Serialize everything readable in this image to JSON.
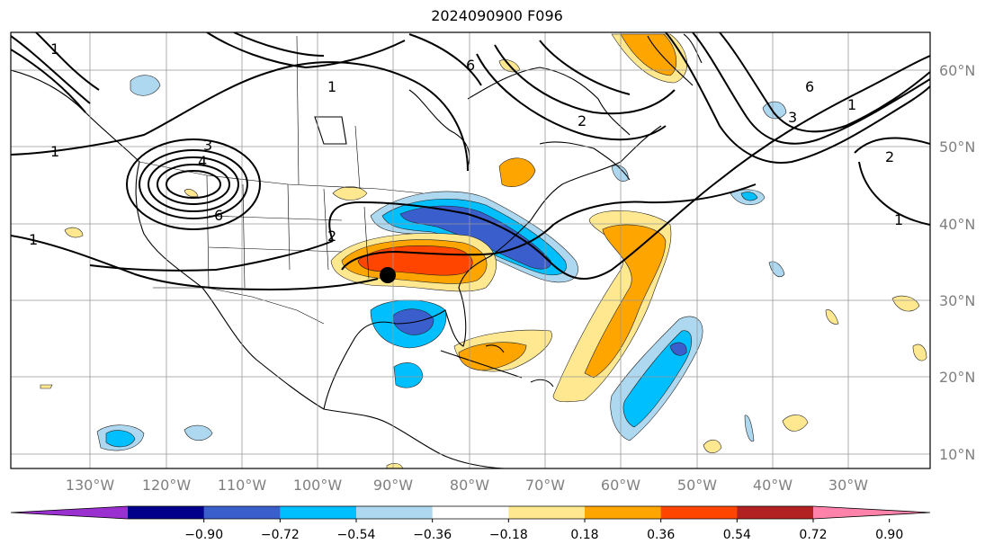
{
  "title": "2024090900 F096",
  "lon_ticks": [
    "130°W",
    "120°W",
    "110°W",
    "100°W",
    "90°W",
    "80°W",
    "70°W",
    "60°W",
    "50°W",
    "40°W",
    "30°W"
  ],
  "lat_ticks": [
    "60°N",
    "50°N",
    "40°N",
    "30°N",
    "20°N",
    "10°N"
  ],
  "colorbar": {
    "levels": [
      "−0.90",
      "−0.72",
      "−0.54",
      "−0.36",
      "−0.18",
      "0.18",
      "0.36",
      "0.54",
      "0.72",
      "0.90"
    ],
    "colors": [
      "#9b30d0",
      "#00008b",
      "#3a5fcd",
      "#00bfff",
      "#add8f0",
      "#ffffff",
      "#ffe890",
      "#ffa500",
      "#ff4500",
      "#b22222",
      "#ff82ab"
    ]
  },
  "contour_labels": [
    "1",
    "1",
    "3",
    "4",
    "6",
    "2",
    "1",
    "6",
    "2",
    "1",
    "3",
    "6",
    "1",
    "2",
    "1"
  ],
  "marker": {
    "type": "black-dot",
    "lon": "91°W",
    "lat": "33°N"
  }
}
